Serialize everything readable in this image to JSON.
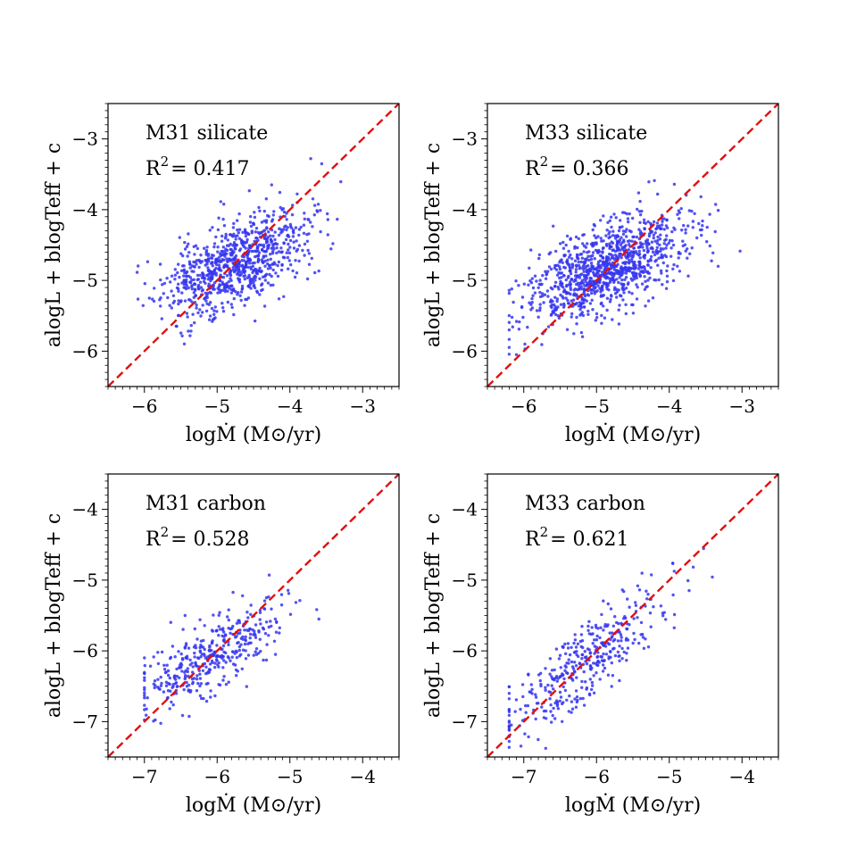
{
  "chart_data": [
    {
      "type": "scatter",
      "title": "M31 silicate",
      "r2_label": "R",
      "r2_exp": "2",
      "r2_value": "= 0.417",
      "xlabel": "logṀ  (M⊙/yr)",
      "ylabel": "alogL + blogTeff + c",
      "xlim": [
        -6.5,
        -2.5
      ],
      "ylim": [
        -6.5,
        -2.5
      ],
      "xticks": [
        -6,
        -5,
        -4,
        -3
      ],
      "yticks": [
        -6,
        -5,
        -4,
        -3
      ],
      "xtick_labels": [
        "−6",
        "−5",
        "−4",
        "−3"
      ],
      "ytick_labels": [
        "−6",
        "−5",
        "−4",
        "−3"
      ],
      "reference_line": "y = x",
      "cloud": {
        "n": 850,
        "x_mean": -4.75,
        "x_sd": 0.5,
        "x_min": -6.1,
        "x_max": -3.2,
        "slope": 0.42,
        "y_mean": -4.75,
        "y_sd": 0.3,
        "seed": 11
      }
    },
    {
      "type": "scatter",
      "title": "M33 silicate",
      "r2_label": "R",
      "r2_exp": "2",
      "r2_value": "= 0.366",
      "xlabel": "logṀ  (M⊙/yr)",
      "ylabel": "alogL + blogTeff + c",
      "xlim": [
        -6.5,
        -2.5
      ],
      "ylim": [
        -6.5,
        -2.5
      ],
      "xticks": [
        -6,
        -5,
        -4,
        -3
      ],
      "yticks": [
        -6,
        -5,
        -4,
        -3
      ],
      "xtick_labels": [
        "−6",
        "−5",
        "−4",
        "−3"
      ],
      "ytick_labels": [
        "−6",
        "−5",
        "−4",
        "−3"
      ],
      "reference_line": "y = x",
      "cloud": {
        "n": 1050,
        "x_mean": -4.9,
        "x_sd": 0.55,
        "x_min": -6.2,
        "x_max": -2.9,
        "slope": 0.4,
        "y_mean": -4.85,
        "y_sd": 0.3,
        "seed": 23
      }
    },
    {
      "type": "scatter",
      "title": "M31 carbon",
      "r2_label": "R",
      "r2_exp": "2",
      "r2_value": "= 0.528",
      "xlabel": "logṀ  (M⊙/yr)",
      "ylabel": "alogL + blogTeff + c",
      "xlim": [
        -7.5,
        -3.5
      ],
      "ylim": [
        -7.5,
        -3.5
      ],
      "xticks": [
        -7,
        -6,
        -5,
        -4
      ],
      "yticks": [
        -7,
        -6,
        -5,
        -4
      ],
      "xtick_labels": [
        "−7",
        "−6",
        "−5",
        "−4"
      ],
      "ytick_labels": [
        "−7",
        "−6",
        "−5",
        "−4"
      ],
      "reference_line": "y = x",
      "cloud": {
        "n": 400,
        "x_mean": -6.05,
        "x_sd": 0.5,
        "x_min": -7.0,
        "x_max": -3.75,
        "slope": 0.55,
        "y_mean": -6.05,
        "y_sd": 0.25,
        "seed": 37
      }
    },
    {
      "type": "scatter",
      "title": "M33 carbon",
      "r2_label": "R",
      "r2_exp": "2",
      "r2_value": "= 0.621",
      "xlabel": "logṀ  (M⊙/yr)",
      "ylabel": "alogL + blogTeff + c",
      "xlim": [
        -7.5,
        -3.5
      ],
      "ylim": [
        -7.5,
        -3.5
      ],
      "xticks": [
        -7,
        -6,
        -5,
        -4
      ],
      "yticks": [
        -7,
        -6,
        -5,
        -4
      ],
      "xtick_labels": [
        "−7",
        "−6",
        "−5",
        "−4"
      ],
      "ytick_labels": [
        "−7",
        "−6",
        "−5",
        "−4"
      ],
      "reference_line": "y = x",
      "cloud": {
        "n": 380,
        "x_mean": -6.2,
        "x_sd": 0.55,
        "x_min": -7.2,
        "x_max": -4.4,
        "slope": 0.75,
        "y_mean": -6.2,
        "y_sd": 0.28,
        "seed": 53
      }
    }
  ],
  "colors": {
    "points": "#3535f0",
    "reference_line": "#e01010",
    "axes": "#000000"
  }
}
